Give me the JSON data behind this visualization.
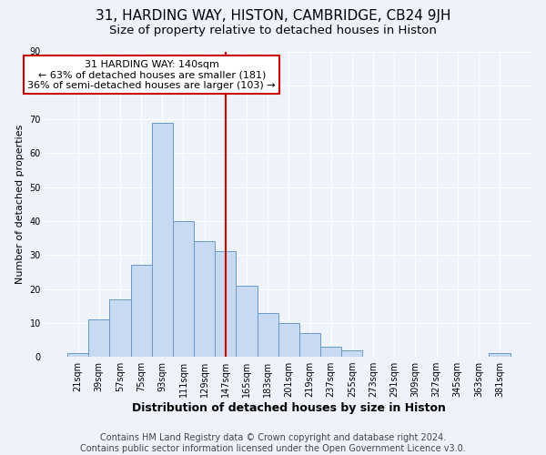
{
  "title_line1": "31, HARDING WAY, HISTON, CAMBRIDGE, CB24 9JH",
  "title_line2": "Size of property relative to detached houses in Histon",
  "xlabel": "Distribution of detached houses by size in Histon",
  "ylabel": "Number of detached properties",
  "categories": [
    "21sqm",
    "39sqm",
    "57sqm",
    "75sqm",
    "93sqm",
    "111sqm",
    "129sqm",
    "147sqm",
    "165sqm",
    "183sqm",
    "201sqm",
    "219sqm",
    "237sqm",
    "255sqm",
    "273sqm",
    "291sqm",
    "309sqm",
    "327sqm",
    "345sqm",
    "363sqm",
    "381sqm"
  ],
  "values": [
    1,
    11,
    17,
    27,
    69,
    40,
    34,
    31,
    21,
    13,
    10,
    7,
    3,
    2,
    0,
    0,
    0,
    0,
    0,
    0,
    1
  ],
  "bar_color": "#c8daf2",
  "bar_edge_color": "#6699cc",
  "vline_idx": 7,
  "vline_color": "#cc0000",
  "annotation_text": "31 HARDING WAY: 140sqm\n← 63% of detached houses are smaller (181)\n36% of semi-detached houses are larger (103) →",
  "annotation_box_color": "#ffffff",
  "annotation_box_edge": "#cc0000",
  "ylim": [
    0,
    90
  ],
  "yticks": [
    0,
    10,
    20,
    30,
    40,
    50,
    60,
    70,
    80,
    90
  ],
  "footer": "Contains HM Land Registry data © Crown copyright and database right 2024.\nContains public sector information licensed under the Open Government Licence v3.0.",
  "background_color": "#eef2fa",
  "grid_color": "#ffffff",
  "title_fontsize": 11,
  "subtitle_fontsize": 9.5,
  "footer_fontsize": 7,
  "ylabel_fontsize": 8,
  "xlabel_fontsize": 9
}
